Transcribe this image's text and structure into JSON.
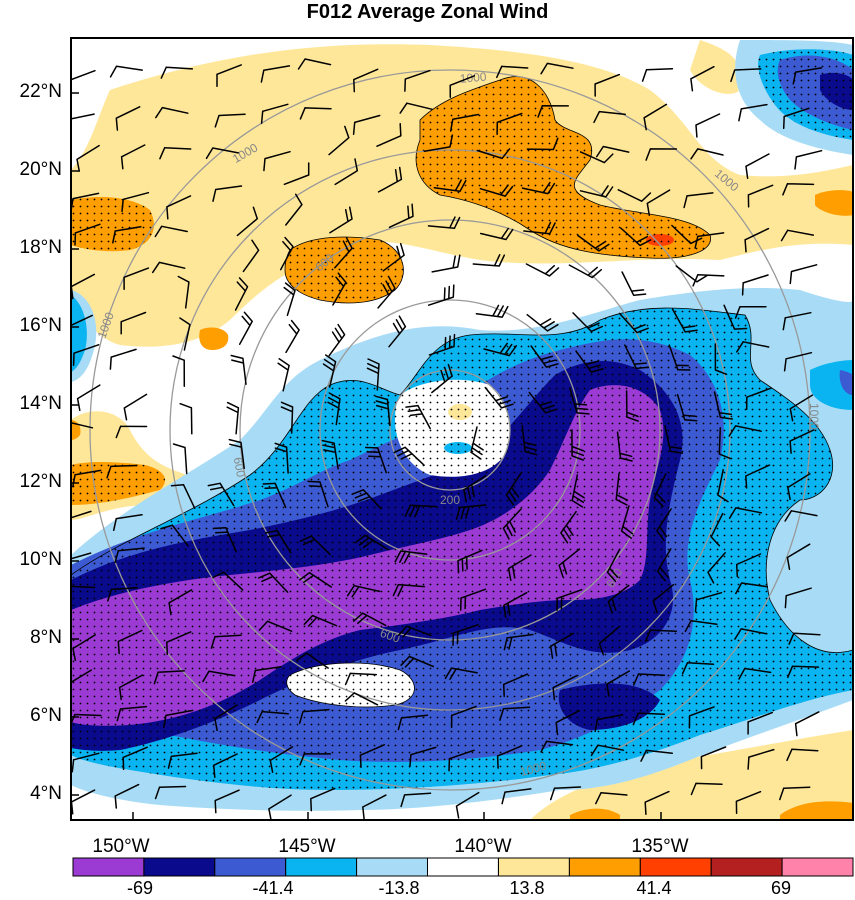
{
  "title": "F012 Average Zonal Wind",
  "lat_labels": [
    "22°N",
    "20°N",
    "18°N",
    "16°N",
    "14°N",
    "12°N",
    "10°N",
    "8°N",
    "6°N",
    "4°N"
  ],
  "lon_labels": [
    "150°W",
    "145°W",
    "140°W",
    "135°W"
  ],
  "range_ring_labels": [
    "200",
    "600",
    "600",
    "1000",
    "1000",
    "1000",
    "1000",
    "1000",
    "600",
    "600",
    "1000"
  ],
  "colorbar": {
    "colors": [
      "#9b3bd3",
      "#0a0a8c",
      "#3c5ad2",
      "#0ab4f0",
      "#a8dcf6",
      "#ffffff",
      "#ffe79a",
      "#ff9e00",
      "#ff4000",
      "#b42020",
      "#ff82aa"
    ],
    "labels": [
      "-69",
      "-41.4",
      "-13.8",
      "13.8",
      "41.4",
      "69"
    ]
  },
  "map_colors": {
    "purple": "#9b3bd3",
    "navy": "#0a0a8c",
    "mid_blue": "#3c5ad2",
    "cyan": "#0ab4f0",
    "light_blue": "#a8dcf6",
    "pale_yellow": "#ffe79a",
    "orange": "#ff9e00",
    "red_orange": "#ff4000",
    "rings": "#999999"
  }
}
